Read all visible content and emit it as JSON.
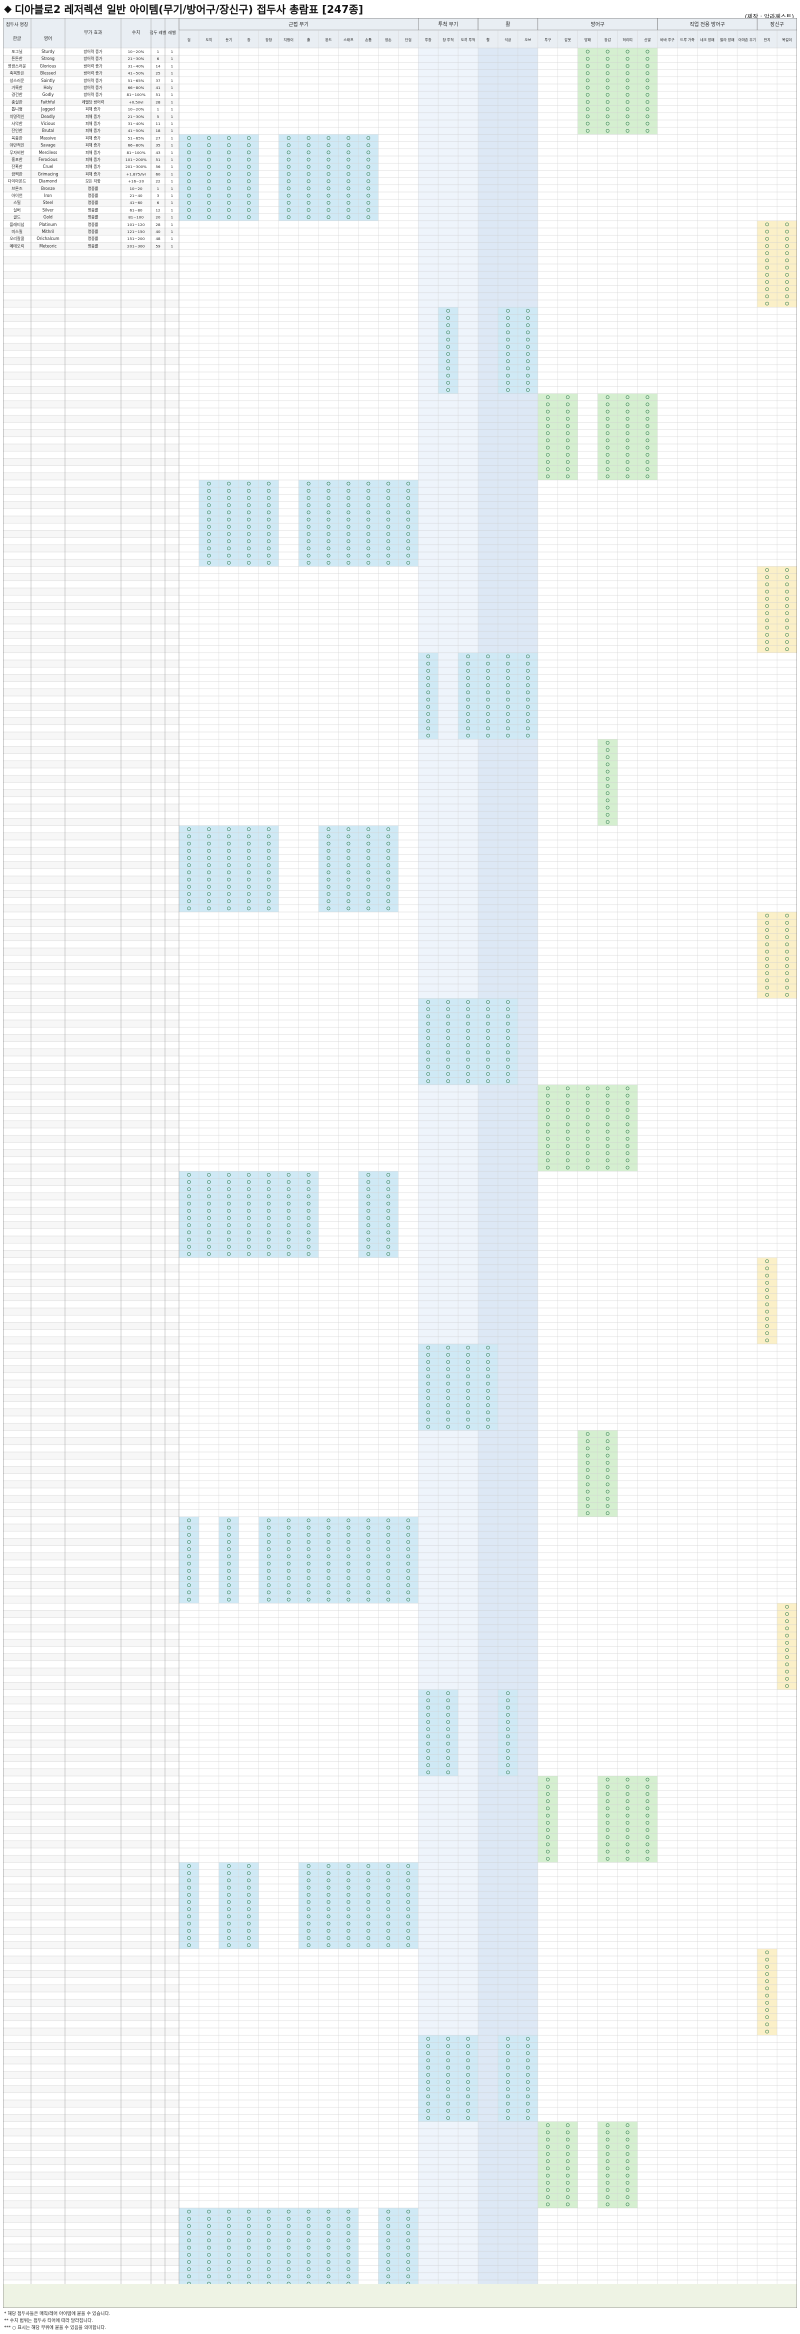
{
  "title": "디아블로2 레저렉션 일반 아이템(무기/방어구/장신구) 접두사 총람표 [247종]",
  "credit": "(제작 : 알라께스트)",
  "header": {
    "affix_name": "접두사 명칭",
    "korean": "한글",
    "english": "영어",
    "affix_option": "부가 효과",
    "value": "수치",
    "affix_level": "접두 레벨",
    "rarity": "레벨",
    "group_weapon_melee": "근접 무기",
    "group_weapon_ranged": "투척 무기",
    "group_bow": "활",
    "group_armor": "방어구",
    "group_jewelry": "장신구",
    "group_class": "직업 전용 방어구",
    "weapon_cols": [
      "검",
      "도끼",
      "둔기",
      "창",
      "장창",
      "지팡이",
      "홀",
      "완드",
      "스태프",
      "손톱",
      "양손",
      "단검",
      "투창",
      "창 투척",
      "도끼 투척",
      "활",
      "석궁",
      "오브"
    ],
    "armor_cols": [
      "투구",
      "갑옷",
      "방패",
      "장갑",
      "허리띠",
      "신발",
      "바바 투구",
      "드루 가죽",
      "네크 방패",
      "팔라 방패",
      "아마존 무기"
    ],
    "jewelry_cols": [
      "반지",
      "목걸이"
    ]
  },
  "notes": [
    "* 해당 접두사들은 매직/레어 아이템에 붙을 수 있습니다.",
    "** 수치 범위는 접두사 티어에 따라 달라집니다.",
    "*** ○ 표시는 해당 부위에 붙을 수 있음을 의미합니다."
  ],
  "affixes": [
    {
      "ko": "포그닐",
      "en": "Sturdy",
      "opt": "방어력 증가",
      "val": "10~20%",
      "lvl": "1",
      "rar": "1"
    },
    {
      "ko": "튼튼한",
      "en": "Strong",
      "opt": "방어력 증가",
      "val": "21~30%",
      "lvl": "6",
      "rar": "1"
    },
    {
      "ko": "영광스러운",
      "en": "Glorious",
      "opt": "방어력 증가",
      "val": "31~40%",
      "lvl": "14",
      "rar": "1"
    },
    {
      "ko": "축복받은",
      "en": "Blessed",
      "opt": "방어력 증가",
      "val": "41~50%",
      "lvl": "25",
      "rar": "1"
    },
    {
      "ko": "성스러운",
      "en": "Saintly",
      "opt": "방어력 증가",
      "val": "51~65%",
      "lvl": "37",
      "rar": "1"
    },
    {
      "ko": "거룩한",
      "en": "Holy",
      "opt": "방어력 증가",
      "val": "66~80%",
      "lvl": "41",
      "rar": "1"
    },
    {
      "ko": "경건한",
      "en": "Godly",
      "opt": "방어력 증가",
      "val": "81~100%",
      "lvl": "51",
      "rar": "1"
    },
    {
      "ko": "충실한",
      "en": "Faithful",
      "opt": "레벨당 방어력",
      "val": "+0.5/lvl",
      "lvl": "28",
      "rar": "1"
    },
    {
      "ko": "톱니형",
      "en": "Jagged",
      "opt": "피해 증가",
      "val": "10~20%",
      "lvl": "1",
      "rar": "1"
    },
    {
      "ko": "치명적인",
      "en": "Deadly",
      "opt": "피해 증가",
      "val": "21~30%",
      "lvl": "5",
      "rar": "1"
    },
    {
      "ko": "사악한",
      "en": "Vicious",
      "opt": "피해 증가",
      "val": "31~40%",
      "lvl": "11",
      "rar": "1"
    },
    {
      "ko": "잔인한",
      "en": "Brutal",
      "opt": "피해 증가",
      "val": "41~50%",
      "lvl": "18",
      "rar": "1"
    },
    {
      "ko": "육중한",
      "en": "Massive",
      "opt": "피해 증가",
      "val": "51~65%",
      "lvl": "27",
      "rar": "1"
    },
    {
      "ko": "야만적인",
      "en": "Savage",
      "opt": "피해 증가",
      "val": "66~80%",
      "lvl": "35",
      "rar": "1"
    },
    {
      "ko": "무자비한",
      "en": "Merciless",
      "opt": "피해 증가",
      "val": "81~100%",
      "lvl": "43",
      "rar": "1"
    },
    {
      "ko": "흉포한",
      "en": "Ferocious",
      "opt": "피해 증가",
      "val": "101~200%",
      "lvl": "51",
      "rar": "1"
    },
    {
      "ko": "잔혹한",
      "en": "Cruel",
      "opt": "피해 증가",
      "val": "201~300%",
      "lvl": "56",
      "rar": "1"
    },
    {
      "ko": "끔찍한",
      "en": "Grimacing",
      "opt": "피해 증가",
      "val": "+1.875/lvl",
      "lvl": "60",
      "rar": "1"
    },
    {
      "ko": "다이아몬드",
      "en": "Diamond",
      "opt": "모든 저항",
      "val": "+16~20",
      "lvl": "22",
      "rar": "1"
    },
    {
      "ko": "브론즈",
      "en": "Bronze",
      "opt": "명중률",
      "val": "10~20",
      "lvl": "1",
      "rar": "1"
    },
    {
      "ko": "아이언",
      "en": "Iron",
      "opt": "명중률",
      "val": "21~40",
      "lvl": "3",
      "rar": "1"
    },
    {
      "ko": "스틸",
      "en": "Steel",
      "opt": "명중률",
      "val": "41~60",
      "lvl": "6",
      "rar": "1"
    },
    {
      "ko": "실버",
      "en": "Silver",
      "opt": "명중률",
      "val": "61~80",
      "lvl": "12",
      "rar": "1"
    },
    {
      "ko": "골드",
      "en": "Gold",
      "opt": "명중률",
      "val": "81~100",
      "lvl": "20",
      "rar": "1"
    },
    {
      "ko": "플래티넘",
      "en": "Platinum",
      "opt": "명중률",
      "val": "101~120",
      "lvl": "28",
      "rar": "1"
    },
    {
      "ko": "미스릴",
      "en": "Mithril",
      "opt": "명중률",
      "val": "121~150",
      "lvl": "40",
      "rar": "1"
    },
    {
      "ko": "오리칼쿰",
      "en": "Orichalcum",
      "opt": "명중률",
      "val": "151~200",
      "lvl": "48",
      "rar": "1"
    },
    {
      "ko": "메테오릭",
      "en": "Meteoric",
      "opt": "명중률",
      "val": "201~300",
      "lvl": "59",
      "rar": "1"
    }
  ]
}
